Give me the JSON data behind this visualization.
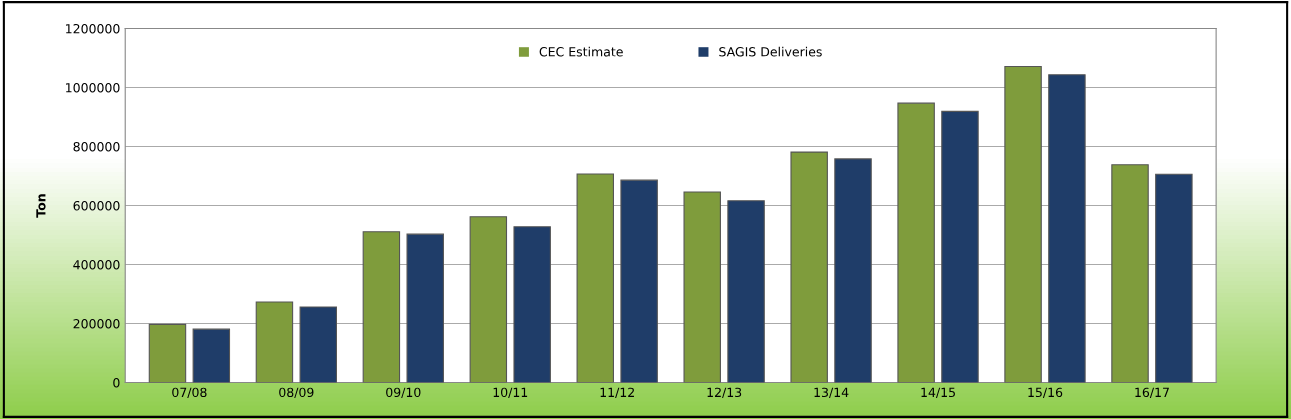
{
  "chart_data": {
    "type": "bar",
    "ylabel": "Ton",
    "categories": [
      "07/08",
      "08/09",
      "09/10",
      "10/11",
      "11/12",
      "12/13",
      "13/14",
      "14/15",
      "15/16",
      "16/17"
    ],
    "series": [
      {
        "name": "CEC Estimate",
        "color": "#7f9c3c",
        "values": [
          197000,
          273000,
          511000,
          562000,
          707000,
          646000,
          781000,
          947000,
          1071000,
          738000
        ]
      },
      {
        "name": "SAGIS Deliveries",
        "color": "#1f3d69",
        "values": [
          181000,
          256000,
          503000,
          528000,
          686000,
          616000,
          758000,
          919000,
          1043000,
          706000
        ]
      }
    ],
    "ylim": [
      0,
      1200000
    ],
    "yticks": [
      0,
      200000,
      400000,
      600000,
      800000,
      1000000,
      1200000
    ],
    "grid": "y",
    "legend": "top"
  }
}
